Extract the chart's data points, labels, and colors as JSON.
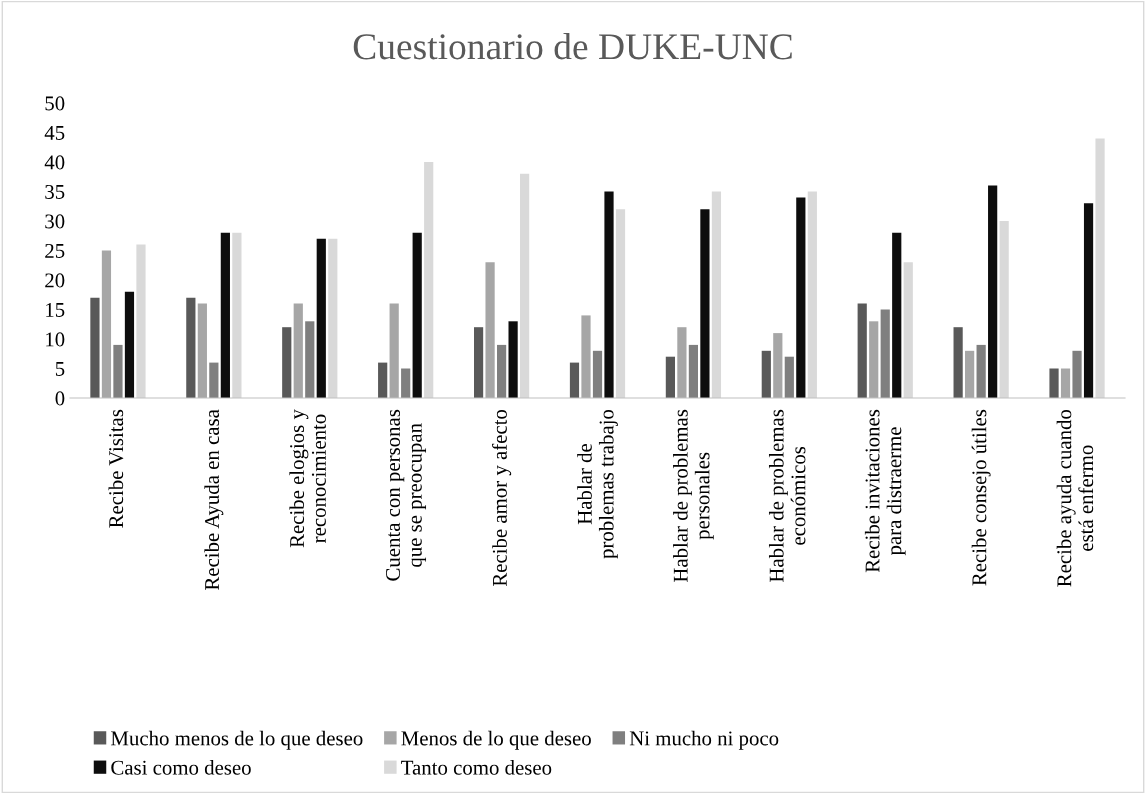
{
  "chart_data": {
    "type": "bar",
    "title": "Cuestionario de DUKE-UNC",
    "categories": [
      "Recibe Visitas",
      "Recibe Ayuda en casa",
      "Recibe elogios y reconocimiento",
      "Cuenta con personas que se preocupan",
      "Recibe amor y afecto",
      "Hablar de problemas trabajo",
      "Hablar de problemas personales",
      "Hablar de problemas económicos",
      "Recibe invitaciones para distraerme",
      "Recibe consejo útiles",
      "Recibe ayuda cuando está enfermo"
    ],
    "series": [
      {
        "name": "Mucho menos de lo que deseo",
        "color": "#595959",
        "values": [
          17,
          17,
          12,
          6,
          12,
          6,
          7,
          8,
          16,
          12,
          5
        ]
      },
      {
        "name": "Menos de lo que deseo",
        "color": "#a6a6a6",
        "values": [
          25,
          16,
          16,
          16,
          23,
          14,
          12,
          11,
          13,
          8,
          5
        ]
      },
      {
        "name": "Ni mucho ni poco",
        "color": "#7f7f7f",
        "values": [
          9,
          6,
          13,
          5,
          9,
          8,
          9,
          7,
          15,
          9,
          8
        ]
      },
      {
        "name": "Casi como deseo",
        "color": "#0d0d0d",
        "values": [
          18,
          28,
          27,
          28,
          13,
          35,
          32,
          34,
          28,
          36,
          33
        ]
      },
      {
        "name": "Tanto como deseo",
        "color": "#d9d9d9",
        "values": [
          26,
          28,
          27,
          40,
          38,
          32,
          35,
          35,
          23,
          30,
          44
        ]
      }
    ],
    "ylim": [
      0,
      50
    ],
    "yticks": [
      0,
      5,
      10,
      15,
      20,
      25,
      30,
      35,
      40,
      45,
      50
    ],
    "grid": false,
    "legend": "bottom"
  }
}
